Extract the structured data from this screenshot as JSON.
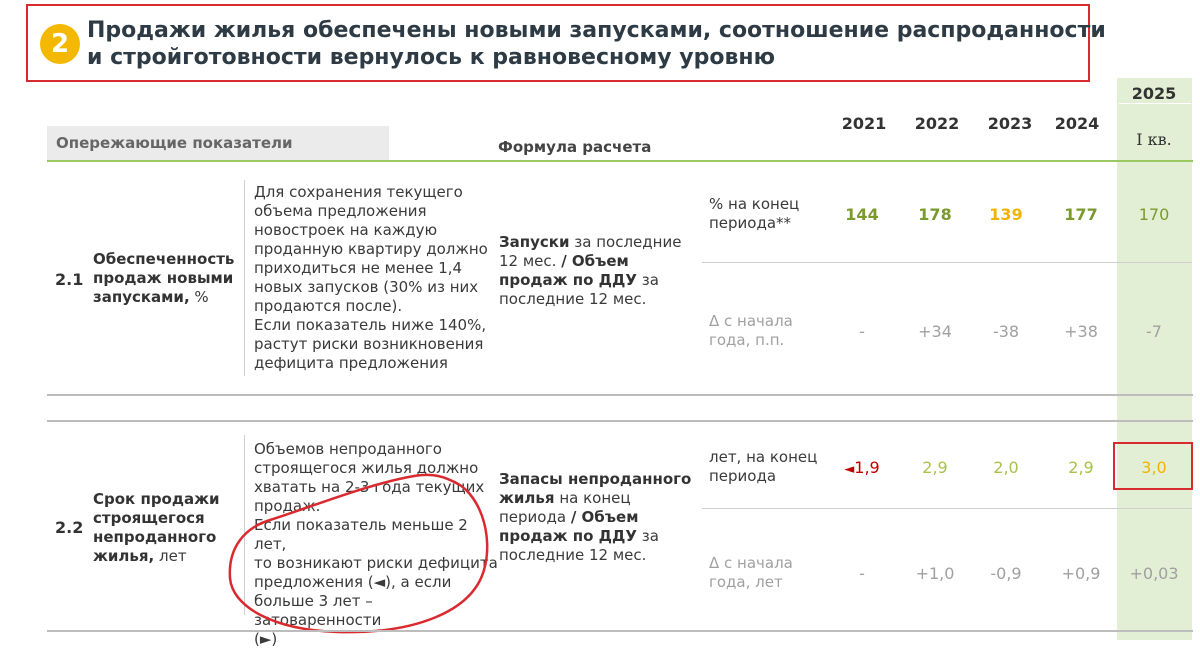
{
  "title": {
    "badge": "2",
    "line1": "Продажи жилья обеспечены новыми запусками, соотношение распроданности",
    "line2": "и стройготовности вернулось к равновесному уровню"
  },
  "header": {
    "leading": "Опережающие  показатели",
    "formula": "Формула расчета",
    "years": [
      "2021",
      "2022",
      "2023",
      "2024"
    ],
    "year_2025": "2025",
    "quarter": "I кв."
  },
  "rows": [
    {
      "num": "2.1",
      "name_bold": "Обеспеченность продаж новыми запусками,",
      "name_rest": " %",
      "desc": [
        "Для сохранения текущего",
        "объема предложения",
        "новостроек на каждую",
        "проданную квартиру должно",
        "приходиться не менее 1,4",
        "новых запусков (30% из них",
        "продаются после).",
        "Если показатель ниже 140%,",
        "растут риски возникновения",
        "дефицита предложения"
      ],
      "formula_bold1": "Запуски",
      "formula_mid1": " за последние 12 мес. ",
      "formula_bold2": "/ Объем продаж по ДДУ",
      "formula_mid2": " за последние 12 мес.",
      "unit1": [
        "% на конец",
        "периода**"
      ],
      "values1": [
        "144",
        "178",
        "139",
        "177",
        "170"
      ],
      "unit2": [
        "Δ с начала",
        "года, п.п."
      ],
      "values2": [
        "-",
        "+34",
        "-38",
        "+38",
        "-7"
      ]
    },
    {
      "num": "2.2",
      "name_bold": "Срок продажи строящегося непроданного жилья,",
      "name_rest": " лет",
      "desc": [
        "Объемов непроданного",
        "строящегося жилья должно",
        "хватать на 2-3 года текущих",
        "продаж.",
        "Если показатель меньше 2 лет,",
        "то возникают риски дефицита",
        "предложения (◄), а если",
        "больше 3 лет – затоваренности",
        "(►)"
      ],
      "formula_bold1": "Запасы непроданного жилья",
      "formula_mid1": " на конец периода ",
      "formula_bold2": "/ Объем продаж по ДДУ",
      "formula_mid2": " за последние 12 мес.",
      "unit1": [
        "лет, на конец",
        "периода"
      ],
      "values1": [
        "1,9",
        "2,9",
        "2,0",
        "2,9",
        "3,0"
      ],
      "arrow": "◄",
      "unit2": [
        "Δ с начала",
        "года, лет"
      ],
      "values2": [
        "-",
        "+1,0",
        "-0,9",
        "+0,9",
        "+0,03"
      ]
    }
  ],
  "colors": {
    "accent_green": "#9cc864",
    "dark_green": "#7a9a2e",
    "light_green": "#a9c24a",
    "yellow": "#f0b400",
    "dark_red": "#c00000",
    "grey": "#a0a0a0",
    "frame_red": "#d92a2f"
  }
}
